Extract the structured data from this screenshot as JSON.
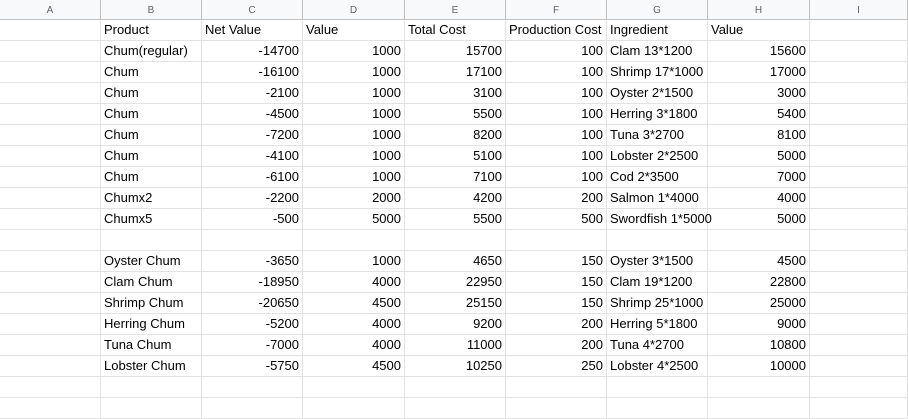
{
  "columns": [
    "A",
    "B",
    "C",
    "D",
    "E",
    "F",
    "G",
    "H",
    "I"
  ],
  "header": [
    "Product",
    "Net Value",
    "Value",
    "Total Cost",
    "Production Cost",
    "Ingredient",
    "Value"
  ],
  "rows": [
    [
      "Chum(regular)",
      "-14700",
      "1000",
      "15700",
      "100",
      "Clam 13*1200",
      "15600"
    ],
    [
      "Chum",
      "-16100",
      "1000",
      "17100",
      "100",
      "Shrimp 17*1000",
      "17000"
    ],
    [
      "Chum",
      "-2100",
      "1000",
      "3100",
      "100",
      "Oyster 2*1500",
      "3000"
    ],
    [
      "Chum",
      "-4500",
      "1000",
      "5500",
      "100",
      "Herring 3*1800",
      "5400"
    ],
    [
      "Chum",
      "-7200",
      "1000",
      "8200",
      "100",
      "Tuna 3*2700",
      "8100"
    ],
    [
      "Chum",
      "-4100",
      "1000",
      "5100",
      "100",
      "Lobster 2*2500",
      "5000"
    ],
    [
      "Chum",
      "-6100",
      "1000",
      "7100",
      "100",
      "Cod 2*3500",
      "7000"
    ],
    [
      "Chumx2",
      "-2200",
      "2000",
      "4200",
      "200",
      "Salmon 1*4000",
      "4000"
    ],
    [
      "Chumx5",
      "-500",
      "5000",
      "5500",
      "500",
      "Swordfish 1*5000",
      "5000"
    ],
    [
      "",
      "",
      "",
      "",
      "",
      "",
      ""
    ],
    [
      "Oyster Chum",
      "-3650",
      "1000",
      "4650",
      "150",
      "Oyster 3*1500",
      "4500"
    ],
    [
      "Clam Chum",
      "-18950",
      "4000",
      "22950",
      "150",
      "Clam 19*1200",
      "22800"
    ],
    [
      "Shrimp Chum",
      "-20650",
      "4500",
      "25150",
      "150",
      "Shrimp 25*1000",
      "25000"
    ],
    [
      "Herring Chum",
      "-5200",
      "4000",
      "9200",
      "200",
      "Herring 5*1800",
      "9000"
    ],
    [
      "Tuna Chum",
      "-7000",
      "4000",
      "11000",
      "200",
      "Tuna 4*2700",
      "10800"
    ],
    [
      "Lobster Chum",
      "-5750",
      "4500",
      "10250",
      "250",
      "Lobster 4*2500",
      "10000"
    ],
    [
      "",
      "",
      "",
      "",
      "",
      "",
      ""
    ],
    [
      "",
      "",
      "",
      "",
      "",
      "",
      ""
    ]
  ]
}
